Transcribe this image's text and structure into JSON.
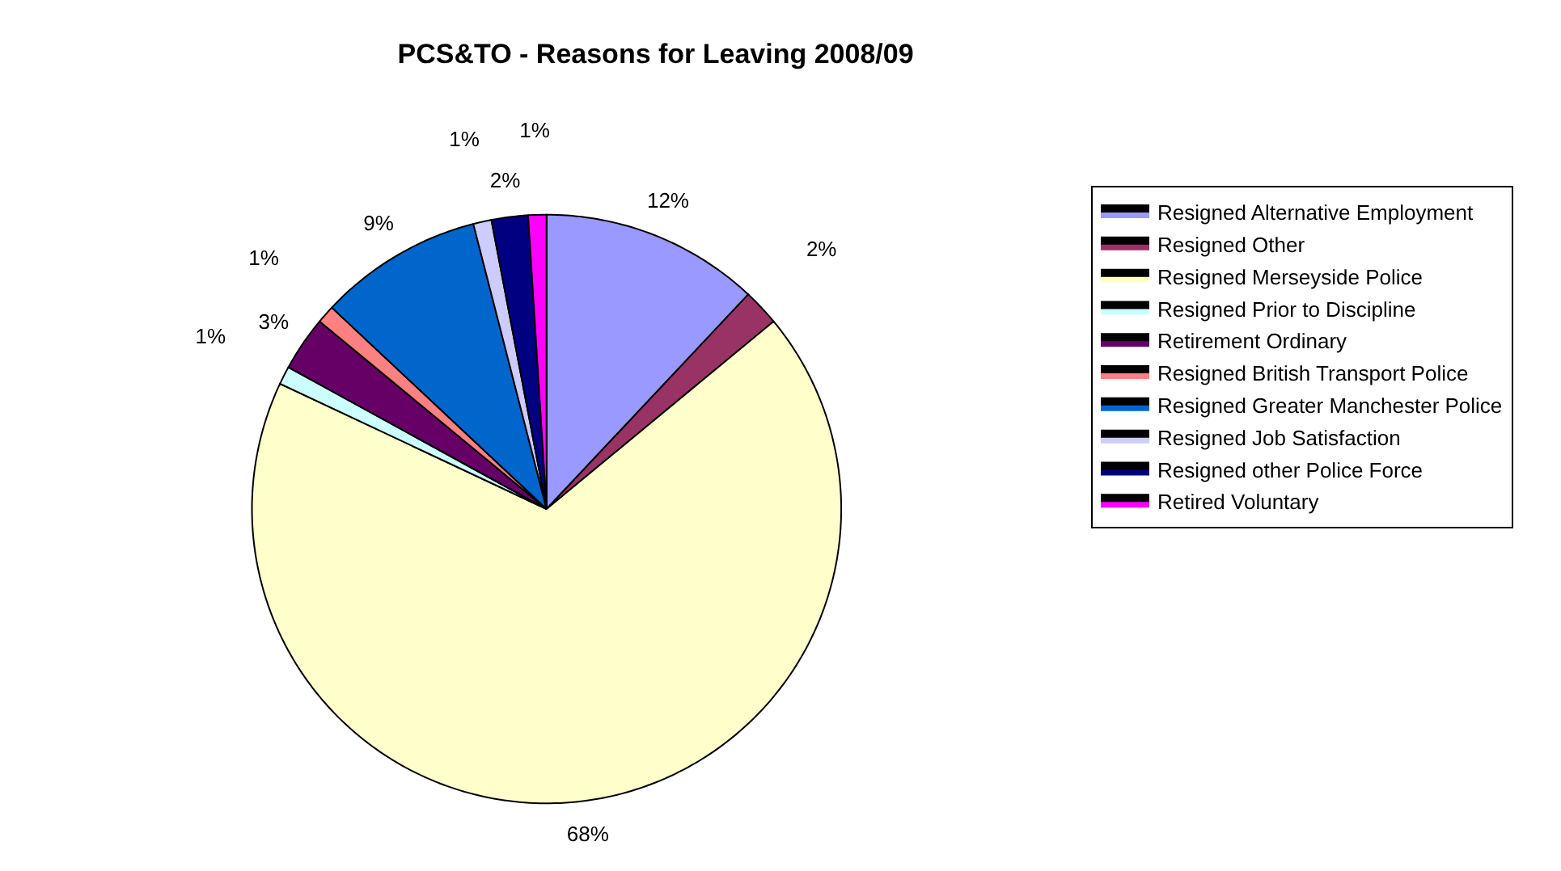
{
  "chart_data": {
    "type": "pie",
    "title": "PCS&TO - Reasons for Leaving 2008/09",
    "categories": [
      "Resigned Alternative Employment",
      "Resigned Other",
      "Resigned Merseyside Police",
      "Resigned Prior to Discipline",
      "Retirement Ordinary",
      "Resigned British Transport Police",
      "Resigned Greater Manchester Police",
      "Resigned Job Satisfaction",
      "Resigned other Police Force",
      "Retired Voluntary"
    ],
    "values": [
      12,
      2,
      68,
      1,
      3,
      1,
      9,
      1,
      2,
      1
    ],
    "value_labels": [
      "12%",
      "2%",
      "68%",
      "1%",
      "3%",
      "1%",
      "9%",
      "1%",
      "2%",
      "1%"
    ],
    "colors": [
      "#9999ff",
      "#993366",
      "#ffffcc",
      "#ccffff",
      "#660066",
      "#ff8080",
      "#0066cc",
      "#ccccff",
      "#000080",
      "#ff00ff"
    ],
    "legend": "right"
  }
}
